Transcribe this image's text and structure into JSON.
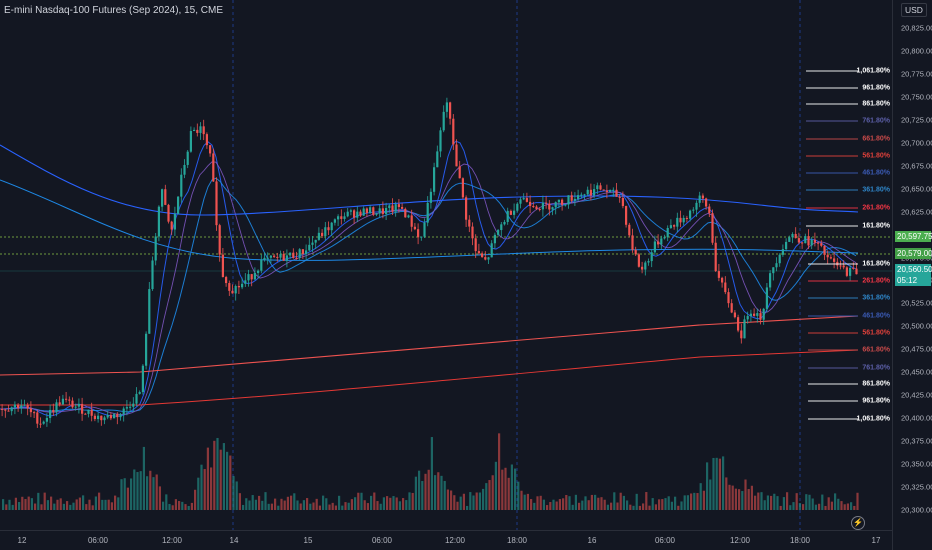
{
  "header": {
    "title": "E-mini Nasdaq-100 Futures (Sep 2024), 15, CME"
  },
  "price_axis": {
    "currency": "USD",
    "ticks": [
      "20,825.00",
      "20,800.00",
      "20,775.00",
      "20,750.00",
      "20,725.00",
      "20,700.00",
      "20,675.00",
      "20,650.00",
      "20,625.00",
      "20,600.00",
      "20,575.00",
      "20,550.00",
      "20,525.00",
      "20,500.00",
      "20,475.00",
      "20,450.00",
      "20,425.00",
      "20,400.00",
      "20,375.00",
      "20,350.00",
      "20,325.00",
      "20,300.00"
    ],
    "badges": [
      {
        "text": "20,597.75",
        "color": "#4caf50"
      },
      {
        "text": "20,579.00",
        "color": "#43a047"
      },
      {
        "text": "20,560.50",
        "color": "#26a69a"
      },
      {
        "text": "05:12",
        "color": "#26a69a"
      }
    ]
  },
  "time_axis": {
    "ticks": [
      "12",
      "06:00",
      "12:00",
      "14",
      "15",
      "06:00",
      "12:00",
      "18:00",
      "16",
      "06:00",
      "12:00",
      "18:00",
      "17"
    ]
  },
  "fib_left": [
    {
      "label": "1,061.80%",
      "color": "#ffffff"
    },
    {
      "label": "961.80%",
      "color": "#ffffff"
    },
    {
      "label": "861.80%",
      "color": "#ffffff"
    },
    {
      "label": "761.80%",
      "color": "#5c5fa8"
    },
    {
      "label": "661.80%",
      "color": "#c94a4a"
    },
    {
      "label": "561.80%",
      "color": "#e0413b"
    },
    {
      "label": "461.80%",
      "color": "#3b5bb5"
    },
    {
      "label": "361.80%",
      "color": "#2f86c9"
    },
    {
      "label": "261.80%",
      "color": "#f23645"
    },
    {
      "label": "161.80%",
      "color": "#ffffff"
    },
    {
      "label": "161.80%",
      "color": "#ffffff"
    },
    {
      "label": "261.80%",
      "color": "#f23645"
    },
    {
      "label": "361.80%",
      "color": "#2f86c9"
    },
    {
      "label": "461.80%",
      "color": "#3b5bb5"
    },
    {
      "label": "561.80%",
      "color": "#e0413b"
    },
    {
      "label": "661.80%",
      "color": "#c94a4a"
    },
    {
      "label": "761.80%",
      "color": "#5c5fa8"
    },
    {
      "label": "861.80%",
      "color": "#ffffff"
    },
    {
      "label": "961.80%",
      "color": "#ffffff"
    },
    {
      "label": "1,061.80%",
      "color": "#ffffff"
    }
  ],
  "colors": {
    "up": "#26a69a",
    "down": "#ef5350",
    "background": "#131722"
  },
  "chart_data": {
    "type": "candlestick",
    "x_range": [
      "12",
      "17"
    ],
    "y_range": [
      20290,
      20835
    ],
    "close_path": [
      [
        0,
        20410
      ],
      [
        20,
        20415
      ],
      [
        40,
        20395
      ],
      [
        60,
        20420
      ],
      [
        80,
        20410
      ],
      [
        100,
        20400
      ],
      [
        120,
        20405
      ],
      [
        140,
        20430
      ],
      [
        150,
        20560
      ],
      [
        160,
        20650
      ],
      [
        170,
        20600
      ],
      [
        180,
        20660
      ],
      [
        190,
        20710
      ],
      [
        200,
        20715
      ],
      [
        210,
        20680
      ],
      [
        220,
        20560
      ],
      [
        230,
        20540
      ],
      [
        240,
        20545
      ],
      [
        250,
        20555
      ],
      [
        260,
        20570
      ],
      [
        280,
        20575
      ],
      [
        300,
        20580
      ],
      [
        320,
        20600
      ],
      [
        340,
        20620
      ],
      [
        360,
        20625
      ],
      [
        380,
        20625
      ],
      [
        400,
        20630
      ],
      [
        420,
        20595
      ],
      [
        435,
        20680
      ],
      [
        445,
        20750
      ],
      [
        455,
        20680
      ],
      [
        465,
        20620
      ],
      [
        475,
        20580
      ],
      [
        485,
        20570
      ],
      [
        495,
        20600
      ],
      [
        505,
        20620
      ],
      [
        520,
        20640
      ],
      [
        540,
        20630
      ],
      [
        560,
        20635
      ],
      [
        580,
        20645
      ],
      [
        600,
        20650
      ],
      [
        620,
        20640
      ],
      [
        630,
        20590
      ],
      [
        640,
        20560
      ],
      [
        655,
        20590
      ],
      [
        670,
        20610
      ],
      [
        685,
        20620
      ],
      [
        700,
        20640
      ],
      [
        708,
        20625
      ],
      [
        715,
        20560
      ],
      [
        722,
        20540
      ],
      [
        730,
        20520
      ],
      [
        740,
        20490
      ],
      [
        748,
        20520
      ],
      [
        760,
        20510
      ],
      [
        770,
        20560
      ],
      [
        780,
        20585
      ],
      [
        790,
        20600
      ],
      [
        800,
        20595
      ],
      [
        815,
        20590
      ],
      [
        830,
        20570
      ],
      [
        845,
        20560
      ],
      [
        858,
        20560
      ]
    ],
    "volume_spikes": [
      [
        140,
        20370
      ],
      [
        215,
        20400
      ],
      [
        430,
        20370
      ],
      [
        500,
        20380
      ],
      [
        715,
        20355
      ],
      [
        740,
        20320
      ]
    ]
  }
}
